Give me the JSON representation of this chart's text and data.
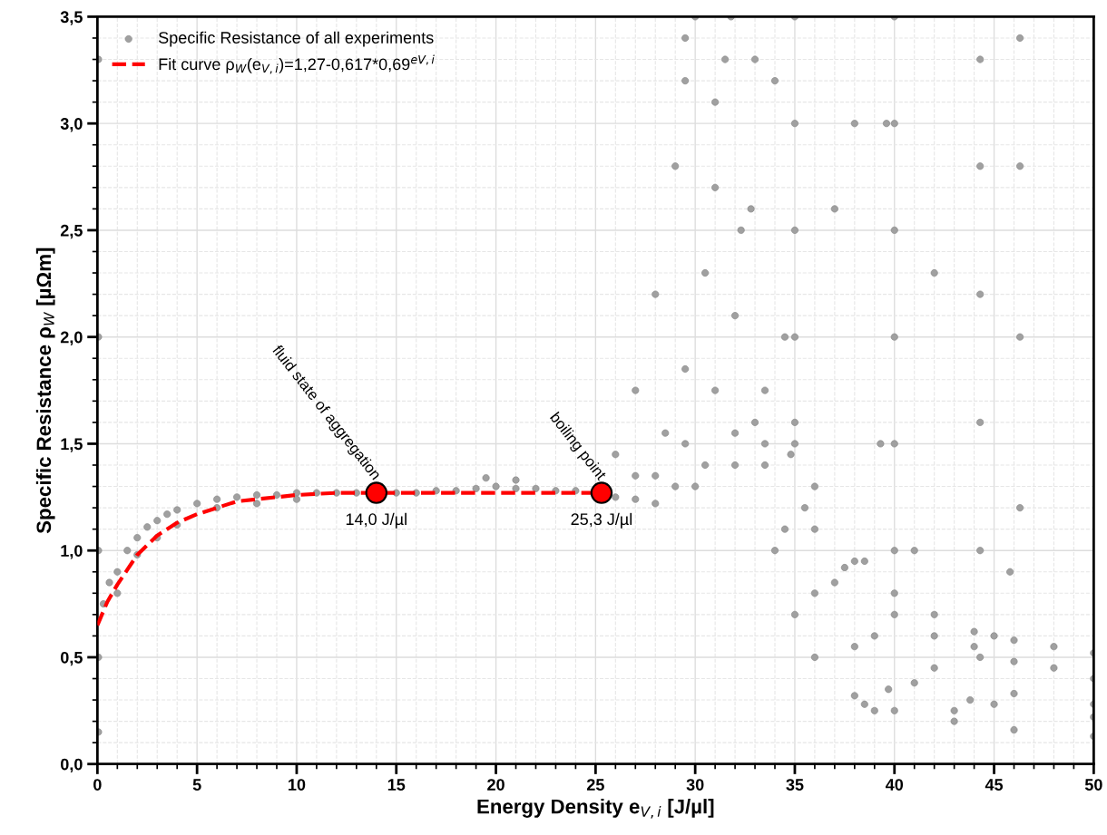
{
  "chart_data": {
    "type": "scatter",
    "xlabel": "Energy Density e$_{V,i}$ [J/µl]",
    "ylabel": "Specific Resistance ρ$_{W}$ [µΩm]",
    "xlim": [
      0,
      50
    ],
    "xticks": [
      0,
      5,
      10,
      15,
      20,
      25,
      30,
      35,
      40,
      45,
      50
    ],
    "ylim": [
      0,
      3.5
    ],
    "yticks": [
      {
        "value": 0,
        "label": "0,0"
      },
      {
        "value": 0.5,
        "label": "0,5"
      },
      {
        "value": 1.0,
        "label": "1,0"
      },
      {
        "value": 1.5,
        "label": "1,5"
      },
      {
        "value": 2.0,
        "label": "2,0"
      },
      {
        "value": 2.5,
        "label": "2,5"
      },
      {
        "value": 3.0,
        "label": "3,0"
      },
      {
        "value": 3.5,
        "label": "3,5"
      }
    ],
    "grid": true,
    "legend": "top left",
    "series": [
      {
        "name": "Specific Resistance of all experiments",
        "color": "#a0a0a0",
        "marker": "circle",
        "x": [
          0.05,
          0.05,
          0.05,
          0.05,
          0.05,
          0.3,
          0.6,
          1,
          1.5,
          2,
          2.5,
          3,
          3.5,
          4,
          5,
          6,
          7,
          8,
          9,
          10,
          11,
          12,
          13,
          15,
          16,
          17,
          18,
          19,
          20,
          21,
          22,
          23,
          24,
          26,
          27,
          28,
          1,
          2,
          3,
          4,
          6,
          8,
          10,
          19.5,
          21,
          26,
          27,
          28,
          29,
          29.5,
          30,
          27,
          28.5,
          29.5,
          30.5,
          31,
          31.5,
          28,
          29.5,
          31,
          32,
          32.8,
          29,
          30.5,
          32,
          33.5,
          34.5,
          30,
          32,
          33.5,
          35,
          31.8,
          32.3,
          33,
          34,
          35,
          36,
          38,
          40,
          43,
          46,
          50,
          33.5,
          34.5,
          36,
          38,
          41,
          45,
          50,
          34.8,
          35.5,
          37,
          39,
          42,
          46,
          50,
          35,
          35,
          35,
          35,
          35,
          36,
          37.5,
          38.5,
          39.3,
          39.6,
          40,
          40,
          40,
          40,
          40,
          40,
          38.5,
          39,
          39.7,
          44.3,
          44.3,
          44.3,
          44.3,
          44.3,
          44.3,
          43,
          43.8,
          46.3,
          46.3,
          46.3,
          46.3,
          45,
          45.8,
          38,
          40,
          42,
          44,
          46,
          48,
          50,
          40,
          42,
          44,
          46,
          48,
          50,
          36,
          41,
          31,
          33,
          37,
          42,
          29.5,
          34,
          38
        ],
        "values": [
          0.15,
          0.5,
          1.0,
          2.0,
          3.3,
          0.75,
          0.85,
          0.9,
          1.0,
          1.06,
          1.11,
          1.14,
          1.17,
          1.19,
          1.22,
          1.24,
          1.25,
          1.26,
          1.26,
          1.27,
          1.27,
          1.27,
          1.27,
          1.27,
          1.27,
          1.28,
          1.28,
          1.29,
          1.3,
          1.29,
          1.29,
          1.28,
          1.28,
          1.25,
          1.24,
          1.22,
          0.8,
          0.98,
          1.06,
          1.12,
          1.2,
          1.22,
          1.24,
          1.34,
          1.33,
          1.45,
          1.75,
          2.2,
          2.8,
          3.2,
          3.5,
          1.35,
          1.55,
          1.85,
          2.3,
          2.7,
          3.3,
          1.35,
          1.5,
          1.75,
          2.1,
          2.6,
          1.3,
          1.4,
          1.55,
          1.75,
          2.0,
          1.3,
          1.4,
          1.5,
          1.6,
          3.5,
          2.5,
          1.6,
          1.0,
          0.7,
          0.5,
          0.32,
          0.25,
          0.2,
          0.16,
          0.13,
          1.4,
          1.1,
          0.8,
          0.55,
          0.38,
          0.28,
          0.22,
          1.45,
          1.2,
          0.85,
          0.6,
          0.45,
          0.33,
          0.28,
          3.5,
          3.0,
          2.5,
          2.0,
          1.5,
          1.1,
          0.92,
          0.95,
          1.5,
          3.0,
          3.5,
          3.0,
          2.5,
          2.0,
          1.5,
          1.0,
          0.28,
          0.25,
          0.35,
          3.3,
          2.8,
          2.2,
          1.6,
          1.0,
          0.5,
          0.25,
          0.3,
          3.4,
          2.8,
          2.0,
          1.2,
          0.6,
          0.9,
          0.95,
          0.8,
          0.7,
          0.62,
          0.58,
          0.55,
          0.52,
          0.7,
          0.6,
          0.55,
          0.48,
          0.45,
          0.4,
          1.3,
          1.0,
          3.1,
          3.3,
          2.6,
          2.3,
          3.4,
          3.2,
          3.0
        ]
      },
      {
        "name": "Fit curve ρ$_{W}$(e$_{V,i}$)=1,27-0,617*0,69$^{eV,i}$",
        "type": "line",
        "color": "#ff0000",
        "line_style": "dashed",
        "marker": "none",
        "x": [
          0,
          0.5,
          1,
          1.5,
          2,
          3,
          4,
          5,
          6,
          7,
          8,
          10,
          12,
          14,
          18,
          22,
          25.3
        ],
        "values": [
          0.65,
          0.76,
          0.84,
          0.91,
          0.98,
          1.07,
          1.13,
          1.17,
          1.2,
          1.23,
          1.24,
          1.26,
          1.27,
          1.27,
          1.27,
          1.27,
          1.27
        ]
      },
      {
        "type": "scatter",
        "color": "#ff0000",
        "marker": "circle",
        "x": [
          14.0,
          25.3
        ],
        "values": [
          1.27,
          1.27
        ]
      }
    ],
    "annotations": [
      "fluid state of aggregation",
      "boiling point",
      "14,0 J/µl",
      "25,3 J/µl"
    ]
  }
}
